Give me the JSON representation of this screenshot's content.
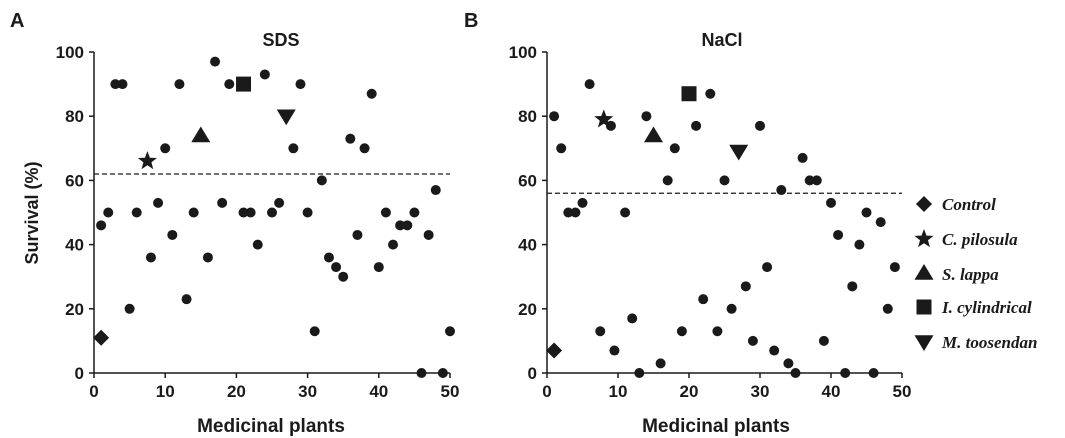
{
  "panel_letters": [
    "A",
    "B"
  ],
  "legend": [
    {
      "label": "Control",
      "marker": "diamond"
    },
    {
      "label": "C. pilosula",
      "marker": "star"
    },
    {
      "label": "S. lappa",
      "marker": "triangle-up"
    },
    {
      "label": "I. cylindrical",
      "marker": "square"
    },
    {
      "label": "M. toosendan",
      "marker": "triangle-down"
    }
  ],
  "chart_data": [
    {
      "type": "scatter",
      "panel": "A",
      "title": "SDS",
      "xlabel": "Medicinal plants",
      "ylabel": "Survival (%)",
      "xlim": [
        0,
        50
      ],
      "ylim": [
        0,
        100
      ],
      "xticks": [
        0,
        10,
        20,
        30,
        40,
        50
      ],
      "yticks": [
        0,
        20,
        40,
        60,
        80,
        100
      ],
      "threshold": 62,
      "points": [
        [
          1,
          46
        ],
        [
          2,
          50
        ],
        [
          3,
          90
        ],
        [
          4,
          90
        ],
        [
          5,
          20
        ],
        [
          6,
          50
        ],
        [
          8,
          36
        ],
        [
          9,
          53
        ],
        [
          10,
          70
        ],
        [
          11,
          43
        ],
        [
          12,
          90
        ],
        [
          13,
          23
        ],
        [
          14,
          50
        ],
        [
          16,
          36
        ],
        [
          17,
          97
        ],
        [
          18,
          53
        ],
        [
          19,
          90
        ],
        [
          21,
          50
        ],
        [
          22,
          50
        ],
        [
          23,
          40
        ],
        [
          24,
          93
        ],
        [
          25,
          50
        ],
        [
          26,
          53
        ],
        [
          28,
          70
        ],
        [
          29,
          90
        ],
        [
          30,
          50
        ],
        [
          31,
          13
        ],
        [
          32,
          60
        ],
        [
          33,
          36
        ],
        [
          34,
          33
        ],
        [
          35,
          30
        ],
        [
          36,
          73
        ],
        [
          37,
          43
        ],
        [
          38,
          70
        ],
        [
          39,
          87
        ],
        [
          40,
          33
        ],
        [
          41,
          50
        ],
        [
          42,
          40
        ],
        [
          43,
          46
        ],
        [
          44,
          46
        ],
        [
          45,
          50
        ],
        [
          46,
          0
        ],
        [
          47,
          43
        ],
        [
          48,
          57
        ],
        [
          49,
          0
        ],
        [
          50,
          13
        ]
      ],
      "series": [
        {
          "name": "Control",
          "marker": "diamond",
          "x": 1,
          "y": 11
        },
        {
          "name": "C. pilosula",
          "marker": "star",
          "x": 7.5,
          "y": 66
        },
        {
          "name": "S. lappa",
          "marker": "triangle-up",
          "x": 15,
          "y": 74
        },
        {
          "name": "I. cylindrical",
          "marker": "square",
          "x": 21,
          "y": 90
        },
        {
          "name": "M. toosendan",
          "marker": "triangle-down",
          "x": 27,
          "y": 80
        }
      ]
    },
    {
      "type": "scatter",
      "panel": "B",
      "title": "NaCl",
      "xlabel": "Medicinal plants",
      "ylabel": "",
      "xlim": [
        0,
        50
      ],
      "ylim": [
        0,
        100
      ],
      "xticks": [
        0,
        10,
        20,
        30,
        40,
        50
      ],
      "yticks": [
        0,
        20,
        40,
        60,
        80,
        100
      ],
      "threshold": 56,
      "points": [
        [
          1,
          80
        ],
        [
          2,
          70
        ],
        [
          3,
          50
        ],
        [
          4,
          50
        ],
        [
          5,
          53
        ],
        [
          6,
          90
        ],
        [
          7.5,
          13
        ],
        [
          9,
          77
        ],
        [
          9.5,
          7
        ],
        [
          11,
          50
        ],
        [
          12,
          17
        ],
        [
          13,
          0
        ],
        [
          14,
          80
        ],
        [
          16,
          3
        ],
        [
          17,
          60
        ],
        [
          18,
          70
        ],
        [
          19,
          13
        ],
        [
          21,
          77
        ],
        [
          22,
          23
        ],
        [
          23,
          87
        ],
        [
          24,
          13
        ],
        [
          25,
          60
        ],
        [
          26,
          20
        ],
        [
          28,
          27
        ],
        [
          29,
          10
        ],
        [
          30,
          77
        ],
        [
          31,
          33
        ],
        [
          32,
          7
        ],
        [
          33,
          57
        ],
        [
          34,
          3
        ],
        [
          35,
          0
        ],
        [
          36,
          67
        ],
        [
          37,
          60
        ],
        [
          38,
          60
        ],
        [
          39,
          10
        ],
        [
          40,
          53
        ],
        [
          41,
          43
        ],
        [
          42,
          0
        ],
        [
          43,
          27
        ],
        [
          44,
          40
        ],
        [
          45,
          50
        ],
        [
          46,
          0
        ],
        [
          47,
          47
        ],
        [
          48,
          20
        ],
        [
          49,
          33
        ]
      ],
      "series": [
        {
          "name": "Control",
          "marker": "diamond",
          "x": 1,
          "y": 7
        },
        {
          "name": "C. pilosula",
          "marker": "star",
          "x": 8,
          "y": 79
        },
        {
          "name": "S. lappa",
          "marker": "triangle-up",
          "x": 15,
          "y": 74
        },
        {
          "name": "I. cylindrical",
          "marker": "square",
          "x": 20,
          "y": 87
        },
        {
          "name": "M. toosendan",
          "marker": "triangle-down",
          "x": 27,
          "y": 69
        }
      ]
    }
  ]
}
